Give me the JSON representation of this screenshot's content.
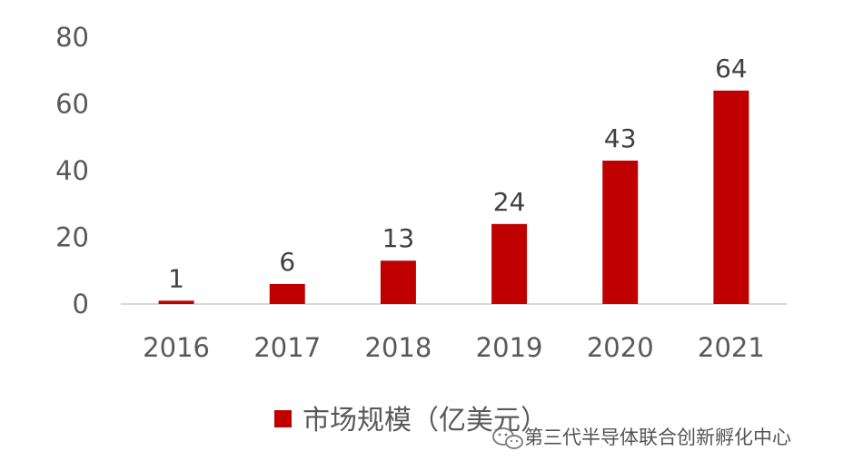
{
  "chart_data": {
    "type": "bar",
    "categories": [
      "2016",
      "2017",
      "2018",
      "2019",
      "2020",
      "2021"
    ],
    "series": [
      {
        "name": "市场规模（亿美元）",
        "values": [
          1,
          6,
          13,
          24,
          43,
          64
        ],
        "color": "#c00000"
      }
    ],
    "data_labels": [
      "1",
      "6",
      "13",
      "24",
      "43",
      "64"
    ],
    "ylim": [
      0,
      80
    ],
    "yticks": [
      0,
      20,
      40,
      60,
      80
    ],
    "grid": false,
    "legend": "bottom"
  },
  "watermark": {
    "text": "第三代半导体联合创新孵化中心",
    "icon": "wechat-icon"
  }
}
